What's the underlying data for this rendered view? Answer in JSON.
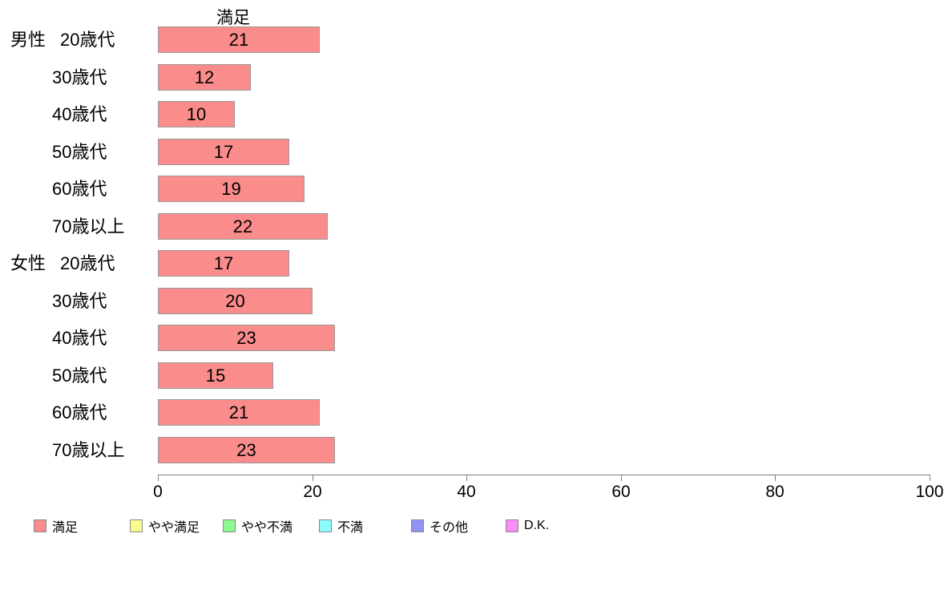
{
  "chart_data": {
    "type": "bar",
    "orientation": "horizontal",
    "title": "満足",
    "categories": [
      {
        "group": "男性",
        "label": "20歳代"
      },
      {
        "group": "",
        "label": "30歳代"
      },
      {
        "group": "",
        "label": "40歳代"
      },
      {
        "group": "",
        "label": "50歳代"
      },
      {
        "group": "",
        "label": "60歳代"
      },
      {
        "group": "",
        "label": "70歳以上"
      },
      {
        "group": "女性",
        "label": "20歳代"
      },
      {
        "group": "",
        "label": "30歳代"
      },
      {
        "group": "",
        "label": "40歳代"
      },
      {
        "group": "",
        "label": "50歳代"
      },
      {
        "group": "",
        "label": "60歳代"
      },
      {
        "group": "",
        "label": "70歳以上"
      }
    ],
    "series": [
      {
        "name": "満足",
        "values": [
          21,
          12,
          10,
          17,
          19,
          22,
          17,
          20,
          23,
          15,
          21,
          23
        ]
      }
    ],
    "xlim": [
      0,
      100
    ],
    "x_ticks": [
      "0",
      "20",
      "40",
      "60",
      "80",
      "100"
    ],
    "grid": false,
    "bar_color": "#fa8c8c",
    "bar_border_color": "#999999",
    "legend_position": "bottom",
    "legend": [
      {
        "label": "満足",
        "color": "#fa8c8c"
      },
      {
        "label": "やや満足",
        "color": "#fbfb8d"
      },
      {
        "label": "やや不満",
        "color": "#90f890"
      },
      {
        "label": "不満",
        "color": "#8dfbfb"
      },
      {
        "label": "その他",
        "color": "#9393f6"
      },
      {
        "label": "D.K.",
        "color": "#fb8dfb"
      }
    ]
  }
}
